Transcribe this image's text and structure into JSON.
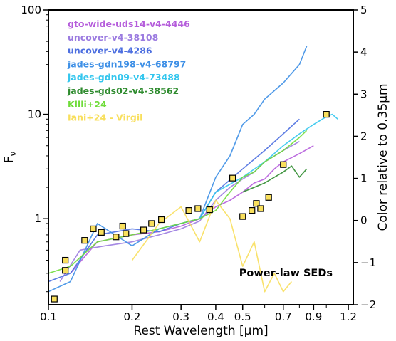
{
  "chart_data": {
    "type": "line",
    "xlabel": "Rest Wavelength [μm]",
    "ylabel": "Fν",
    "ylabel_right": "Color relative to 0.35μm",
    "xscale": "log",
    "yscale": "log",
    "xlim": [
      0.1,
      1.25
    ],
    "ylim": [
      0.15,
      100
    ],
    "ylim_right": [
      -2,
      5
    ],
    "x_ticks": [
      "0.1",
      "0.2",
      "0.3",
      "0.4",
      "0.5",
      "0.7",
      "0.9",
      "1.2"
    ],
    "y_ticks": [
      "1",
      "10",
      "100"
    ],
    "y_right_ticks": [
      "−2",
      "−1",
      "0",
      "1",
      "2",
      "3",
      "4",
      "5"
    ],
    "annotation": "Power-law SEDs",
    "legend_position": "top-left",
    "series": [
      {
        "name": "gto-wide-uds14-v4-4446",
        "color": "#b55ddb",
        "x": [
          0.12,
          0.15,
          0.2,
          0.25,
          0.3,
          0.35,
          0.4,
          0.45,
          0.5,
          0.55,
          0.6,
          0.65,
          0.7,
          0.8,
          0.9
        ],
        "y": [
          0.3,
          0.6,
          0.7,
          0.75,
          0.85,
          1.0,
          1.3,
          1.5,
          1.8,
          2.2,
          2.4,
          3.0,
          3.5,
          4.2,
          5.0
        ]
      },
      {
        "name": "uncover-v4-38108",
        "color": "#9b7be0",
        "x": [
          0.11,
          0.13,
          0.16,
          0.2,
          0.25,
          0.3,
          0.35,
          0.4,
          0.45,
          0.5,
          0.55,
          0.6,
          0.7,
          0.8
        ],
        "y": [
          0.25,
          0.5,
          0.55,
          0.6,
          0.7,
          0.8,
          0.95,
          1.5,
          2.0,
          2.4,
          2.8,
          3.5,
          4.5,
          5.5
        ]
      },
      {
        "name": "uncover-v4-4286",
        "color": "#4d6fe0",
        "x": [
          0.1,
          0.12,
          0.15,
          0.2,
          0.25,
          0.3,
          0.35,
          0.4,
          0.5,
          0.6,
          0.7,
          0.8
        ],
        "y": [
          0.25,
          0.3,
          0.7,
          0.8,
          0.75,
          0.9,
          1.0,
          1.8,
          3.0,
          4.5,
          6.5,
          9.0
        ]
      },
      {
        "name": "jades-gdn198-v4-68797",
        "color": "#3d8fe6",
        "x": [
          0.1,
          0.12,
          0.15,
          0.2,
          0.25,
          0.3,
          0.35,
          0.4,
          0.45,
          0.5,
          0.55,
          0.6,
          0.7,
          0.8,
          0.85
        ],
        "y": [
          0.2,
          0.25,
          0.9,
          0.55,
          0.8,
          0.9,
          1.0,
          2.5,
          4.0,
          8.0,
          10.0,
          14.0,
          20.0,
          30.0,
          45.0
        ]
      },
      {
        "name": "jades-gdn09-v4-73488",
        "color": "#33c6ee",
        "x": [
          0.35,
          0.4,
          0.5,
          0.6,
          0.7,
          0.8,
          0.9,
          1.0,
          1.05,
          1.1
        ],
        "y": [
          1.0,
          1.8,
          2.5,
          3.5,
          5.0,
          6.5,
          8.0,
          9.5,
          10.0,
          9.0
        ]
      },
      {
        "name": "jades-gds02-v4-38562",
        "color": "#2e8b2e",
        "x": [
          0.5,
          0.55,
          0.6,
          0.65,
          0.7,
          0.75,
          0.8,
          0.85
        ],
        "y": [
          1.8,
          2.0,
          2.2,
          2.5,
          2.8,
          3.2,
          2.5,
          3.0
        ]
      },
      {
        "name": "Kllli+24",
        "color": "#6fdc3a",
        "x": [
          0.1,
          0.12,
          0.15,
          0.2,
          0.25,
          0.3,
          0.35,
          0.4,
          0.45,
          0.5,
          0.55,
          0.6,
          0.7,
          0.8,
          0.85
        ],
        "y": [
          0.3,
          0.35,
          0.6,
          0.7,
          0.8,
          0.9,
          1.0,
          1.2,
          1.8,
          2.5,
          2.8,
          3.5,
          4.5,
          6.0,
          7.0
        ]
      },
      {
        "name": "Iani+24 - Virgil",
        "color": "#f8df5c",
        "x": [
          0.2,
          0.25,
          0.3,
          0.35,
          0.4,
          0.45,
          0.5,
          0.55,
          0.6,
          0.65,
          0.7,
          0.75
        ],
        "y": [
          0.4,
          0.9,
          1.3,
          0.6,
          1.5,
          1.0,
          0.35,
          0.6,
          0.2,
          0.3,
          0.2,
          0.25
        ]
      }
    ],
    "power_law_markers": {
      "x": [
        0.105,
        0.115,
        0.115,
        0.135,
        0.145,
        0.155,
        0.175,
        0.185,
        0.19,
        0.22,
        0.235,
        0.255,
        0.32,
        0.345,
        0.38,
        0.46,
        0.5,
        0.54,
        0.56,
        0.58,
        0.62,
        0.7,
        1.0
      ],
      "y": [
        0.17,
        0.32,
        0.4,
        0.62,
        0.8,
        0.74,
        0.67,
        0.85,
        0.72,
        0.78,
        0.9,
        0.98,
        1.2,
        1.25,
        1.22,
        2.45,
        1.05,
        1.2,
        1.4,
        1.25,
        1.6,
        3.3,
        10.0
      ]
    }
  }
}
